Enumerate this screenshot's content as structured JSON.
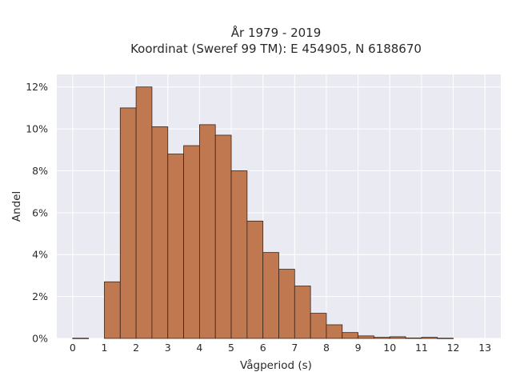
{
  "chart_data": {
    "type": "bar",
    "title": "År 1979 - 2019",
    "subtitle": "Koordinat (Sweref 99 TM): E 454905, N 6188670",
    "xlabel": "Vågperiod (s)",
    "ylabel": "Andel",
    "xlim": [
      -0.5,
      13.5
    ],
    "ylim": [
      0,
      0.126
    ],
    "grid": true,
    "bar_color": "#c07850",
    "bar_edge_color": "#3a2418",
    "background_color": "#eaeaf2",
    "x_ticks": [
      {
        "value": 0,
        "label": "0"
      },
      {
        "value": 1,
        "label": "1"
      },
      {
        "value": 2,
        "label": "2"
      },
      {
        "value": 3,
        "label": "3"
      },
      {
        "value": 4,
        "label": "4"
      },
      {
        "value": 5,
        "label": "5"
      },
      {
        "value": 6,
        "label": "6"
      },
      {
        "value": 7,
        "label": "7"
      },
      {
        "value": 8,
        "label": "8"
      },
      {
        "value": 9,
        "label": "9"
      },
      {
        "value": 10,
        "label": "10"
      },
      {
        "value": 11,
        "label": "11"
      },
      {
        "value": 12,
        "label": "12"
      },
      {
        "value": 13,
        "label": "13"
      }
    ],
    "y_ticks": [
      {
        "value": 0,
        "label": "0%"
      },
      {
        "value": 0.02,
        "label": "2%"
      },
      {
        "value": 0.04,
        "label": "4%"
      },
      {
        "value": 0.06,
        "label": "6%"
      },
      {
        "value": 0.08,
        "label": "8%"
      },
      {
        "value": 0.1,
        "label": "10%"
      },
      {
        "value": 0.12,
        "label": "12%"
      }
    ],
    "bin_width": 0.5,
    "bins": [
      {
        "x": 0.0,
        "value": 0.0001
      },
      {
        "x": 1.0,
        "value": 0.027
      },
      {
        "x": 1.5,
        "value": 0.11
      },
      {
        "x": 2.0,
        "value": 0.12
      },
      {
        "x": 2.5,
        "value": 0.101
      },
      {
        "x": 3.0,
        "value": 0.088
      },
      {
        "x": 3.5,
        "value": 0.092
      },
      {
        "x": 4.0,
        "value": 0.102
      },
      {
        "x": 4.5,
        "value": 0.097
      },
      {
        "x": 5.0,
        "value": 0.08
      },
      {
        "x": 5.5,
        "value": 0.056
      },
      {
        "x": 6.0,
        "value": 0.041
      },
      {
        "x": 6.5,
        "value": 0.033
      },
      {
        "x": 7.0,
        "value": 0.025
      },
      {
        "x": 7.5,
        "value": 0.012
      },
      {
        "x": 8.0,
        "value": 0.0065
      },
      {
        "x": 8.5,
        "value": 0.0028
      },
      {
        "x": 9.0,
        "value": 0.0012
      },
      {
        "x": 9.5,
        "value": 0.0005
      },
      {
        "x": 10.0,
        "value": 0.0008
      },
      {
        "x": 10.5,
        "value": 0.0002
      },
      {
        "x": 11.0,
        "value": 0.0005
      },
      {
        "x": 11.5,
        "value": 0.0001
      }
    ]
  }
}
